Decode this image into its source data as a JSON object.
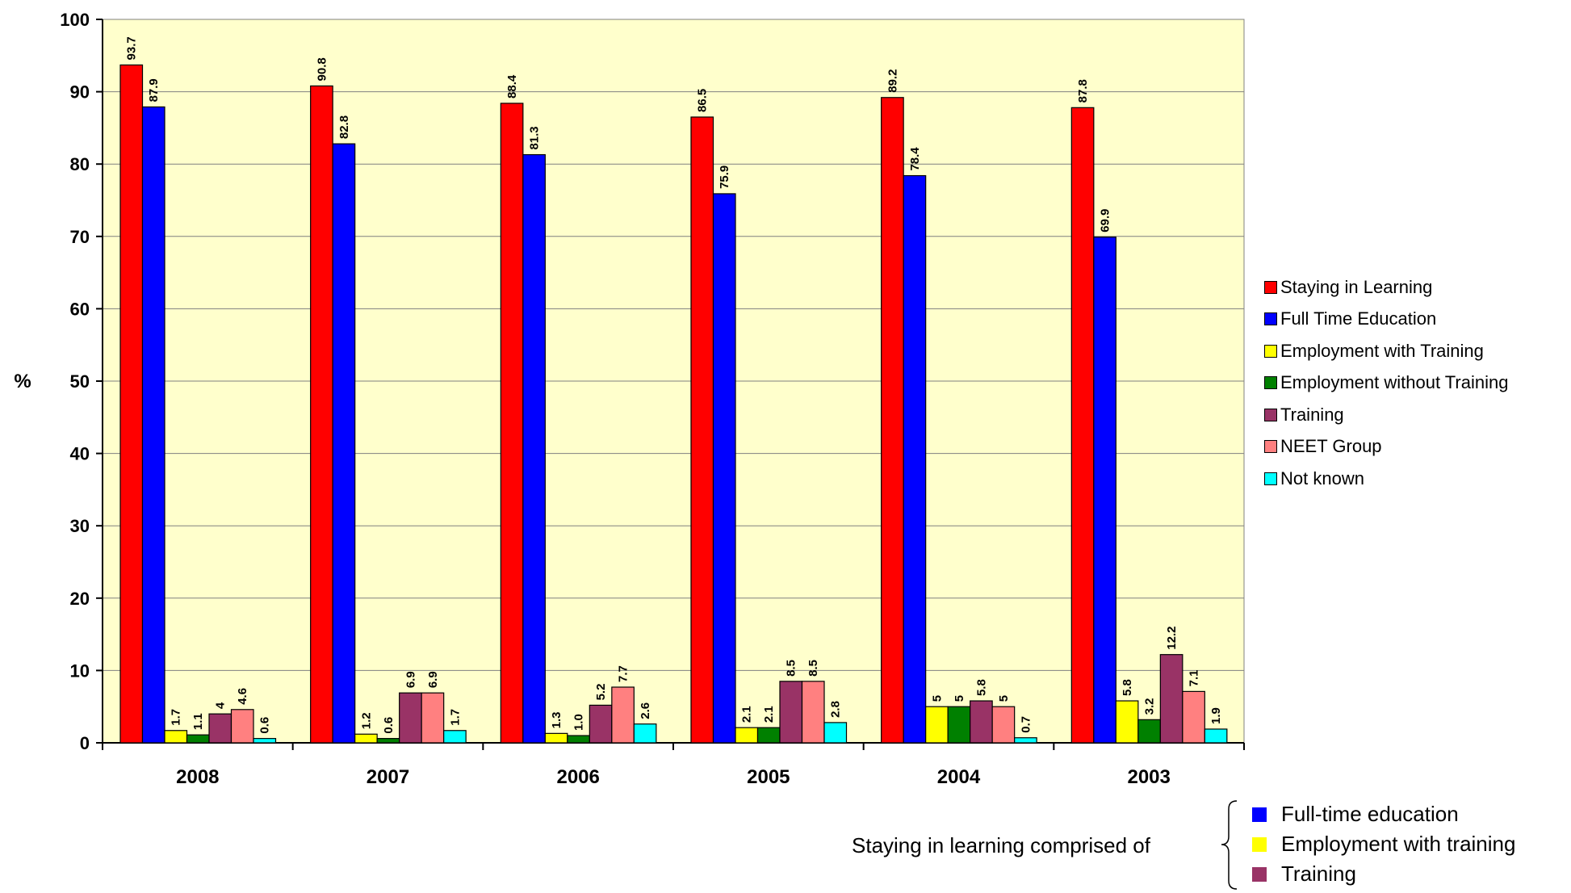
{
  "chart_data": {
    "type": "bar",
    "categories": [
      "2008",
      "2007",
      "2006",
      "2005",
      "2004",
      "2003"
    ],
    "ylabel": "%",
    "ylim": [
      0,
      100
    ],
    "yticks": [
      "0",
      "10",
      "20",
      "30",
      "40",
      "50",
      "60",
      "70",
      "80",
      "90",
      "100"
    ],
    "grid": "horizontal",
    "plot_background": "#FFFFCC",
    "legend_position": "right",
    "series": [
      {
        "name": "Staying in Learning",
        "color": "#FF0000",
        "values": [
          93.7,
          90.8,
          88.4,
          86.5,
          89.2,
          87.8
        ],
        "labels": [
          "93.7",
          "90.8",
          "88.4",
          "86.5",
          "89.2",
          "87.8"
        ]
      },
      {
        "name": "Full Time Education",
        "color": "#0000FF",
        "values": [
          87.9,
          82.8,
          81.3,
          75.9,
          78.4,
          69.9
        ],
        "labels": [
          "87.9",
          "82.8",
          "81.3",
          "75.9",
          "78.4",
          "69.9"
        ]
      },
      {
        "name": "Employment with Training",
        "color": "#FFFF00",
        "values": [
          1.7,
          1.2,
          1.3,
          2.1,
          5,
          5.8
        ],
        "labels": [
          "1.7",
          "1.2",
          "1.3",
          "2.1",
          "5",
          "5.8"
        ]
      },
      {
        "name": "Employment without Training",
        "color": "#008000",
        "values": [
          1.1,
          0.6,
          1.0,
          2.1,
          5,
          3.2
        ],
        "labels": [
          "1.1",
          "0.6",
          "1.0",
          "2.1",
          "5",
          "3.2"
        ]
      },
      {
        "name": "Training",
        "color": "#993366",
        "values": [
          4,
          6.9,
          5.2,
          8.5,
          5.8,
          12.2
        ],
        "labels": [
          "4",
          "6.9",
          "5.2",
          "8.5",
          "5.8",
          "12.2"
        ]
      },
      {
        "name": "NEET Group",
        "color": "#FF8080",
        "values": [
          4.6,
          6.9,
          7.7,
          8.5,
          5,
          7.1
        ],
        "labels": [
          "4.6",
          "6.9",
          "7.7",
          "8.5",
          "5",
          "7.1"
        ]
      },
      {
        "name": "Not known",
        "color": "#00FFFF",
        "values": [
          0.6,
          1.7,
          2.6,
          2.8,
          0.7,
          1.9
        ],
        "labels": [
          "0.6",
          "1.7",
          "2.6",
          "2.8",
          "0.7",
          "1.9"
        ]
      }
    ]
  },
  "note": {
    "text": "Staying in learning comprised of",
    "items": [
      {
        "label": "Full-time education",
        "color": "#0000FF"
      },
      {
        "label": "Employment with training",
        "color": "#FFFF00"
      },
      {
        "label": "Training",
        "color": "#993366"
      }
    ]
  }
}
